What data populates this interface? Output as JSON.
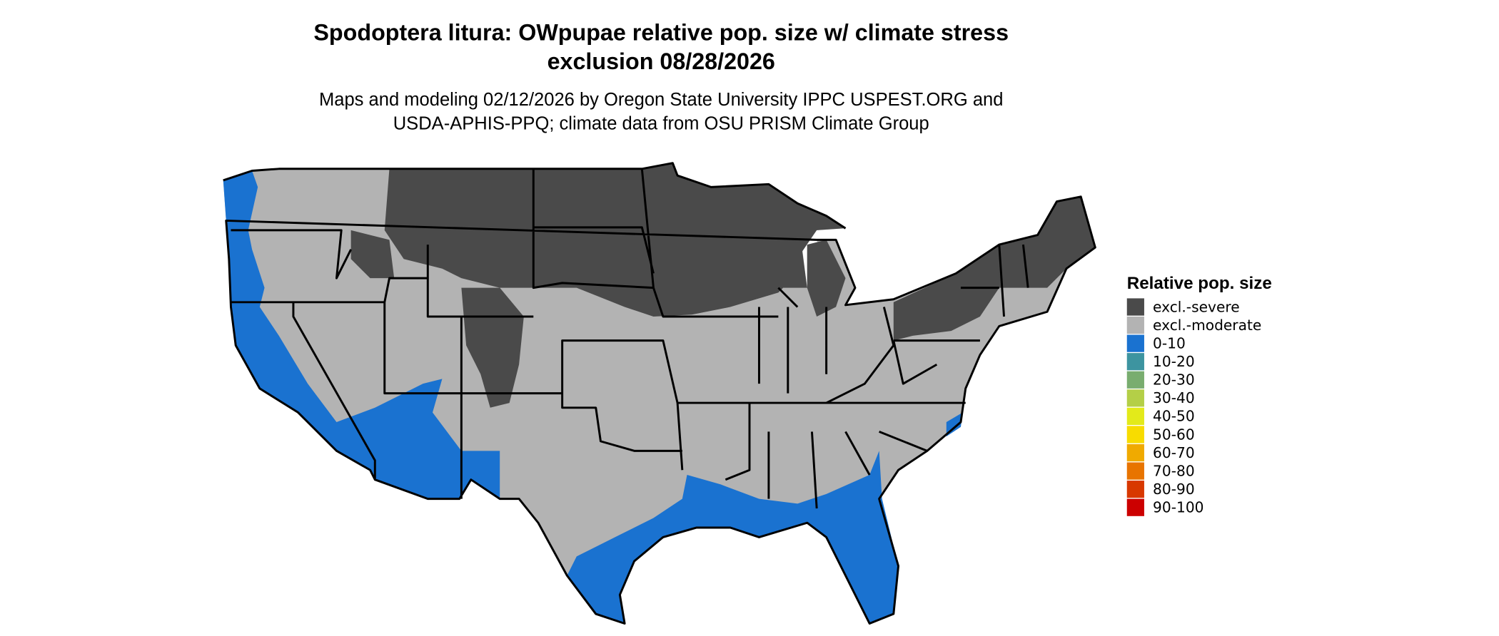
{
  "title": [
    "Spodoptera litura: OWpupae relative pop. size w/ climate stress",
    "exclusion 08/28/2026"
  ],
  "subtitle": [
    "Maps and modeling 02/12/2026 by Oregon State University IPPC USPEST.ORG and",
    "USDA-APHIS-PPQ; climate data from OSU PRISM Climate Group"
  ],
  "legend": {
    "title": "Relative pop. size",
    "items": [
      {
        "label": "excl.-severe",
        "color": "#4a4a4a"
      },
      {
        "label": "excl.-moderate",
        "color": "#b3b3b3"
      },
      {
        "label": "0-10",
        "color": "#1a72d0"
      },
      {
        "label": "10-20",
        "color": "#3d94a0"
      },
      {
        "label": "20-30",
        "color": "#79ad6f"
      },
      {
        "label": "30-40",
        "color": "#b4cf47"
      },
      {
        "label": "40-50",
        "color": "#e3ea1a"
      },
      {
        "label": "50-60",
        "color": "#f8dc00"
      },
      {
        "label": "60-70",
        "color": "#f0aa00"
      },
      {
        "label": "70-80",
        "color": "#e87400"
      },
      {
        "label": "80-90",
        "color": "#d83800"
      },
      {
        "label": "90-100",
        "color": "#cc0000"
      }
    ]
  }
}
